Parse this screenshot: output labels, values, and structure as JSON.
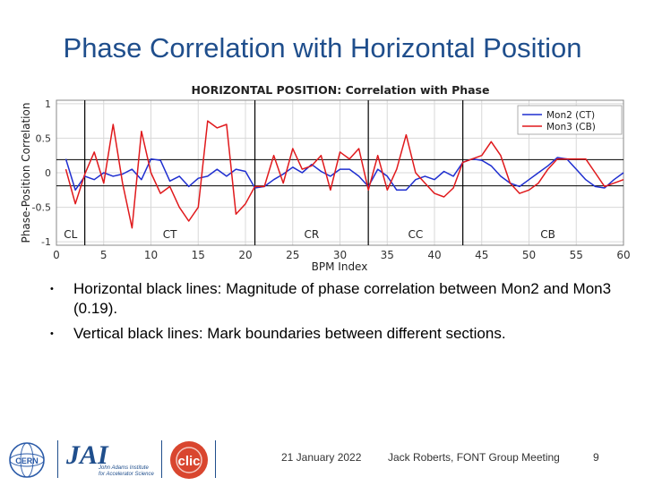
{
  "slide": {
    "title": "Phase Correlation with Horizontal Position",
    "bullets": [
      "Horizontal black lines: Magnitude of phase correlation between Mon2 and Mon3 (0.19).",
      "Vertical black lines: Mark boundaries between different sections."
    ],
    "bullet_marker": "•"
  },
  "footer": {
    "date": "21 January 2022",
    "author": "Jack Roberts, FONT Group Meeting",
    "page": "9",
    "logos": {
      "cern": "CERN",
      "jai": "JAI",
      "jai_subtitle": "John Adams Institute for Accelerator Science",
      "clic": "CLIC"
    }
  },
  "chart_data": {
    "type": "line",
    "title": "HORIZONTAL POSITION: Correlation with Phase",
    "xlabel": "BPM Index",
    "ylabel": "Phase-Position Correlation",
    "xlim": [
      0,
      60
    ],
    "ylim": [
      -1.05,
      1.05
    ],
    "xticks": [
      0,
      5,
      10,
      15,
      20,
      25,
      30,
      35,
      40,
      45,
      50,
      55,
      60
    ],
    "yticks": [
      -1,
      -0.5,
      0,
      0.5,
      1
    ],
    "ytick_labels": [
      "-1",
      "-0.5",
      "0",
      "0.5",
      "1"
    ],
    "grid": true,
    "legend_position": "top-right",
    "hlines": [
      0.19,
      -0.19
    ],
    "vlines": [
      3,
      21,
      33,
      43
    ],
    "sections": [
      {
        "label": "CL",
        "x": 1.5
      },
      {
        "label": "CT",
        "x": 12
      },
      {
        "label": "CR",
        "x": 27
      },
      {
        "label": "CC",
        "x": 38
      },
      {
        "label": "CB",
        "x": 52
      }
    ],
    "colors": {
      "mon2": "#1f2fd0",
      "mon3": "#e0191c"
    },
    "series": [
      {
        "name": "Mon2 (CT)",
        "x": [
          1,
          2,
          3,
          4,
          5,
          6,
          7,
          8,
          9,
          10,
          11,
          12,
          13,
          14,
          15,
          16,
          17,
          18,
          19,
          20,
          21,
          22,
          23,
          24,
          25,
          26,
          27,
          28,
          29,
          30,
          31,
          32,
          33,
          34,
          35,
          36,
          37,
          38,
          39,
          40,
          41,
          42,
          43,
          44,
          45,
          46,
          47,
          48,
          49,
          50,
          51,
          52,
          53,
          54,
          55,
          56,
          57,
          58,
          59,
          60
        ],
        "values": [
          0.2,
          -0.25,
          -0.05,
          -0.1,
          0.0,
          -0.05,
          -0.02,
          0.05,
          -0.1,
          0.2,
          0.18,
          -0.12,
          -0.05,
          -0.2,
          -0.08,
          -0.05,
          0.05,
          -0.05,
          0.05,
          0.02,
          -0.22,
          -0.2,
          -0.1,
          -0.02,
          0.08,
          0.0,
          0.12,
          0.02,
          -0.05,
          0.05,
          0.05,
          -0.05,
          -0.2,
          0.05,
          -0.05,
          -0.25,
          -0.25,
          -0.1,
          -0.05,
          -0.1,
          0.02,
          -0.05,
          0.15,
          0.2,
          0.18,
          0.1,
          -0.05,
          -0.15,
          -0.2,
          -0.1,
          0.0,
          0.1,
          0.22,
          0.2,
          0.05,
          -0.1,
          -0.2,
          -0.22,
          -0.1,
          0.0
        ]
      },
      {
        "name": "Mon3 (CB)",
        "x": [
          1,
          2,
          3,
          4,
          5,
          6,
          7,
          8,
          9,
          10,
          11,
          12,
          13,
          14,
          15,
          16,
          17,
          18,
          19,
          20,
          21,
          22,
          23,
          24,
          25,
          26,
          27,
          28,
          29,
          30,
          31,
          32,
          33,
          34,
          35,
          36,
          37,
          38,
          39,
          40,
          41,
          42,
          43,
          44,
          45,
          46,
          47,
          48,
          49,
          50,
          51,
          52,
          53,
          54,
          55,
          56,
          57,
          58,
          59,
          60
        ],
        "values": [
          0.05,
          -0.45,
          -0.02,
          0.3,
          -0.15,
          0.7,
          -0.15,
          -0.8,
          0.6,
          0.0,
          -0.3,
          -0.2,
          -0.5,
          -0.7,
          -0.5,
          0.75,
          0.65,
          0.7,
          -0.6,
          -0.45,
          -0.2,
          -0.2,
          0.25,
          -0.15,
          0.35,
          0.05,
          0.1,
          0.25,
          -0.25,
          0.3,
          0.2,
          0.35,
          -0.25,
          0.25,
          -0.25,
          0.05,
          0.55,
          0.0,
          -0.15,
          -0.3,
          -0.35,
          -0.22,
          0.15,
          0.2,
          0.25,
          0.45,
          0.25,
          -0.15,
          -0.3,
          -0.25,
          -0.15,
          0.05,
          0.2,
          0.2,
          0.2,
          0.2,
          0.0,
          -0.2,
          -0.15,
          -0.1
        ]
      }
    ]
  }
}
